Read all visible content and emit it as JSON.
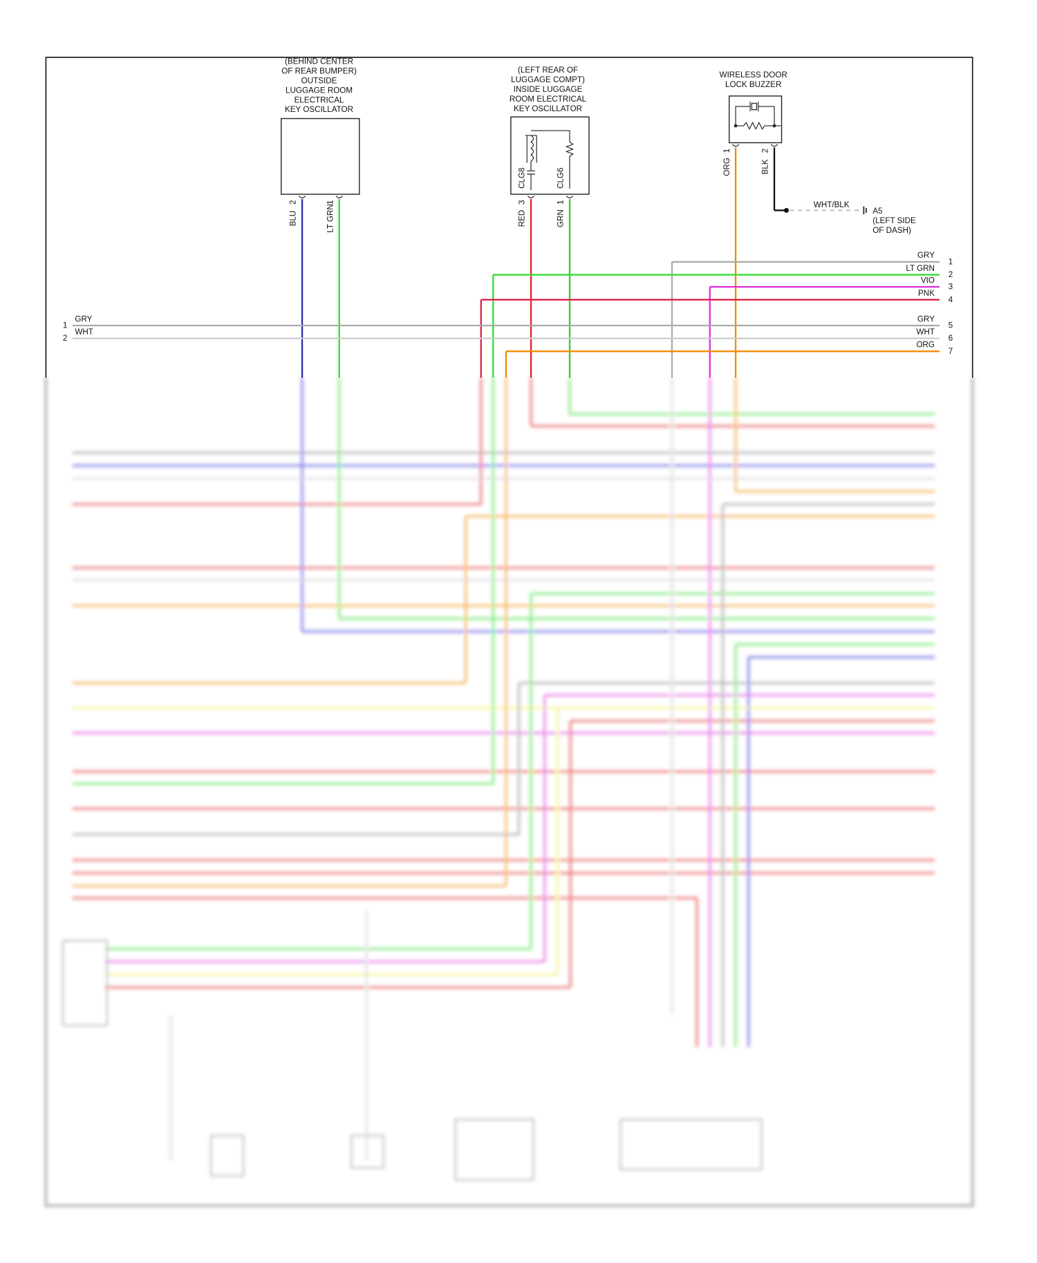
{
  "components": [
    {
      "label": [
        "(BEHIND CENTER",
        "OF REAR BUMPER)",
        "OUTSIDE",
        "LUGGAGE ROOM",
        "ELECTRICAL",
        "KEY OSCILLATOR"
      ],
      "pins": [
        {
          "number": "2",
          "wire": "BLU",
          "color": "#2b2bb0"
        },
        {
          "number": "1",
          "wire": "LT GRN",
          "color": "#33dd33"
        }
      ]
    },
    {
      "label": [
        "(LEFT REAR OF",
        "LUGGAGE COMPT)",
        "INSIDE LUGGAGE",
        "ROOM ELECTRICAL",
        "KEY OSCILLATOR"
      ],
      "pins": [
        {
          "number": "3",
          "circuit": "CLG8",
          "wire": "RED",
          "color": "#e02020"
        },
        {
          "number": "1",
          "circuit": "CLG6",
          "wire": "GRN",
          "color": "#33cc33"
        }
      ]
    },
    {
      "label": [
        "WIRELESS DOOR",
        "LOCK BUZZER"
      ],
      "pins": [
        {
          "number": "1",
          "wire": "ORG",
          "color": "#f08a00"
        },
        {
          "number": "2",
          "wire": "BLK",
          "color": "#111111"
        }
      ]
    }
  ],
  "ground": {
    "wire": "WHT/BLK",
    "id": "A5",
    "location": [
      "(LEFT SIDE",
      "OF DASH)"
    ]
  },
  "connector_right": [
    {
      "pin": "1",
      "wire": "GRY",
      "color": "#aaaaaa"
    },
    {
      "pin": "2",
      "wire": "LT GRN",
      "color": "#33dd33"
    },
    {
      "pin": "3",
      "wire": "VIO",
      "color": "#dd33dd"
    },
    {
      "pin": "4",
      "wire": "PNK",
      "color": "#e0204a"
    },
    {
      "pin": "5",
      "wire": "GRY",
      "color": "#aaaaaa"
    },
    {
      "pin": "6",
      "wire": "WHT",
      "color": "#cccccc"
    },
    {
      "pin": "7",
      "wire": "ORG",
      "color": "#f08a00"
    }
  ],
  "connector_left": [
    {
      "pin": "1",
      "wire": "GRY"
    },
    {
      "pin": "2",
      "wire": "WHT"
    }
  ]
}
